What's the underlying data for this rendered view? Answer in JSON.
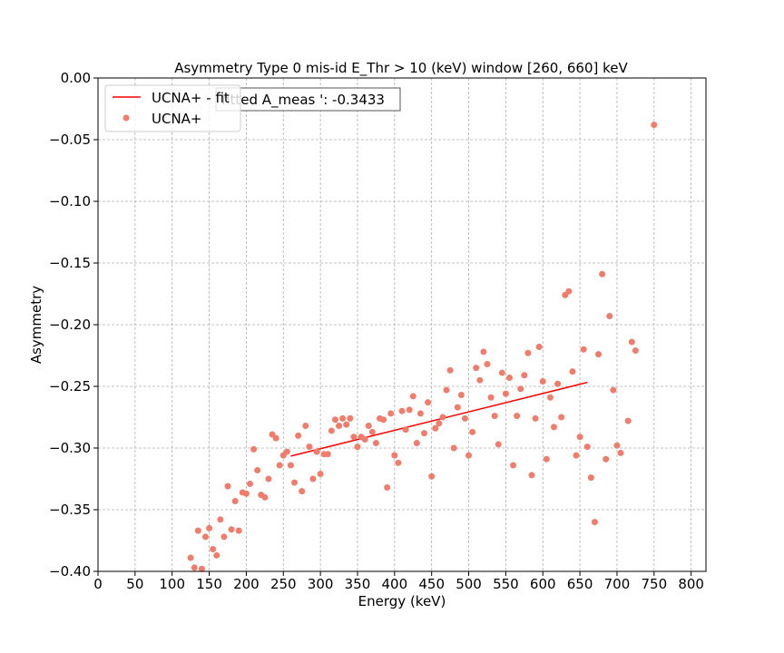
{
  "chart_data": {
    "type": "scatter",
    "title": "Asymmetry Type 0 mis-id  E_Thr > 10 (keV) window [260, 660] keV",
    "xlabel": "Energy (keV)",
    "ylabel": "Asymmetry",
    "xlim": [
      0,
      820
    ],
    "ylim": [
      -0.4,
      0.0
    ],
    "xticks": [
      0,
      50,
      100,
      150,
      200,
      250,
      300,
      350,
      400,
      450,
      500,
      550,
      600,
      650,
      700,
      750,
      800
    ],
    "yticks": [
      0.0,
      -0.05,
      -0.1,
      -0.15,
      -0.2,
      -0.25,
      -0.3,
      -0.35,
      -0.4
    ],
    "xtick_labels": [
      "0",
      "50",
      "100",
      "150",
      "200",
      "250",
      "300",
      "350",
      "400",
      "450",
      "500",
      "550",
      "600",
      "650",
      "700",
      "750",
      "800"
    ],
    "ytick_labels": [
      "0.00",
      "−0.05",
      "−0.10",
      "−0.15",
      "−0.20",
      "−0.25",
      "−0.30",
      "−0.35",
      "−0.40"
    ],
    "grid": true,
    "legend_position": "top-left",
    "annotation": "fitted A_meas ': -0.3433",
    "series": [
      {
        "name": "UCNA+ - fit",
        "kind": "line",
        "color": "#ff0000",
        "x": [
          260,
          660
        ],
        "y": [
          -0.3065,
          -0.2468
        ]
      },
      {
        "name": "UCNA+",
        "kind": "scatter",
        "color": "#f07c6c",
        "points": [
          [
            125,
            -0.389
          ],
          [
            130,
            -0.397
          ],
          [
            135,
            -0.367
          ],
          [
            140,
            -0.398
          ],
          [
            145,
            -0.372
          ],
          [
            150,
            -0.365
          ],
          [
            155,
            -0.382
          ],
          [
            160,
            -0.387
          ],
          [
            165,
            -0.358
          ],
          [
            170,
            -0.372
          ],
          [
            175,
            -0.331
          ],
          [
            180,
            -0.366
          ],
          [
            185,
            -0.343
          ],
          [
            190,
            -0.367
          ],
          [
            195,
            -0.336
          ],
          [
            200,
            -0.337
          ],
          [
            205,
            -0.329
          ],
          [
            210,
            -0.301
          ],
          [
            215,
            -0.318
          ],
          [
            220,
            -0.338
          ],
          [
            225,
            -0.34
          ],
          [
            230,
            -0.325
          ],
          [
            235,
            -0.289
          ],
          [
            240,
            -0.292
          ],
          [
            245,
            -0.314
          ],
          [
            250,
            -0.306
          ],
          [
            255,
            -0.303
          ],
          [
            260,
            -0.314
          ],
          [
            265,
            -0.328
          ],
          [
            270,
            -0.29
          ],
          [
            275,
            -0.335
          ],
          [
            280,
            -0.282
          ],
          [
            285,
            -0.299
          ],
          [
            290,
            -0.325
          ],
          [
            295,
            -0.303
          ],
          [
            300,
            -0.321
          ],
          [
            305,
            -0.305
          ],
          [
            310,
            -0.305
          ],
          [
            315,
            -0.286
          ],
          [
            320,
            -0.277
          ],
          [
            325,
            -0.282
          ],
          [
            330,
            -0.276
          ],
          [
            335,
            -0.281
          ],
          [
            340,
            -0.276
          ],
          [
            345,
            -0.291
          ],
          [
            350,
            -0.299
          ],
          [
            355,
            -0.291
          ],
          [
            360,
            -0.293
          ],
          [
            365,
            -0.282
          ],
          [
            370,
            -0.287
          ],
          [
            375,
            -0.296
          ],
          [
            380,
            -0.276
          ],
          [
            385,
            -0.277
          ],
          [
            390,
            -0.332
          ],
          [
            395,
            -0.272
          ],
          [
            400,
            -0.306
          ],
          [
            405,
            -0.312
          ],
          [
            410,
            -0.27
          ],
          [
            415,
            -0.285
          ],
          [
            420,
            -0.269
          ],
          [
            425,
            -0.258
          ],
          [
            430,
            -0.296
          ],
          [
            435,
            -0.272
          ],
          [
            440,
            -0.288
          ],
          [
            445,
            -0.263
          ],
          [
            450,
            -0.323
          ],
          [
            455,
            -0.284
          ],
          [
            460,
            -0.28
          ],
          [
            465,
            -0.275
          ],
          [
            470,
            -0.253
          ],
          [
            475,
            -0.237
          ],
          [
            480,
            -0.3
          ],
          [
            485,
            -0.267
          ],
          [
            490,
            -0.257
          ],
          [
            495,
            -0.276
          ],
          [
            500,
            -0.306
          ],
          [
            505,
            -0.287
          ],
          [
            510,
            -0.235
          ],
          [
            515,
            -0.245
          ],
          [
            520,
            -0.222
          ],
          [
            525,
            -0.232
          ],
          [
            530,
            -0.259
          ],
          [
            535,
            -0.274
          ],
          [
            540,
            -0.297
          ],
          [
            545,
            -0.239
          ],
          [
            550,
            -0.256
          ],
          [
            555,
            -0.243
          ],
          [
            560,
            -0.314
          ],
          [
            565,
            -0.274
          ],
          [
            570,
            -0.252
          ],
          [
            575,
            -0.241
          ],
          [
            580,
            -0.223
          ],
          [
            585,
            -0.322
          ],
          [
            590,
            -0.276
          ],
          [
            595,
            -0.218
          ],
          [
            600,
            -0.246
          ],
          [
            605,
            -0.309
          ],
          [
            610,
            -0.259
          ],
          [
            615,
            -0.283
          ],
          [
            620,
            -0.248
          ],
          [
            625,
            -0.275
          ],
          [
            630,
            -0.176
          ],
          [
            635,
            -0.173
          ],
          [
            640,
            -0.238
          ],
          [
            645,
            -0.306
          ],
          [
            650,
            -0.291
          ],
          [
            655,
            -0.22
          ],
          [
            660,
            -0.299
          ],
          [
            665,
            -0.324
          ],
          [
            670,
            -0.36
          ],
          [
            675,
            -0.224
          ],
          [
            680,
            -0.159
          ],
          [
            685,
            -0.309
          ],
          [
            690,
            -0.193
          ],
          [
            695,
            -0.253
          ],
          [
            700,
            -0.298
          ],
          [
            705,
            -0.304
          ],
          [
            715,
            -0.278
          ],
          [
            720,
            -0.214
          ],
          [
            725,
            -0.221
          ],
          [
            750,
            -0.038
          ]
        ]
      }
    ]
  }
}
